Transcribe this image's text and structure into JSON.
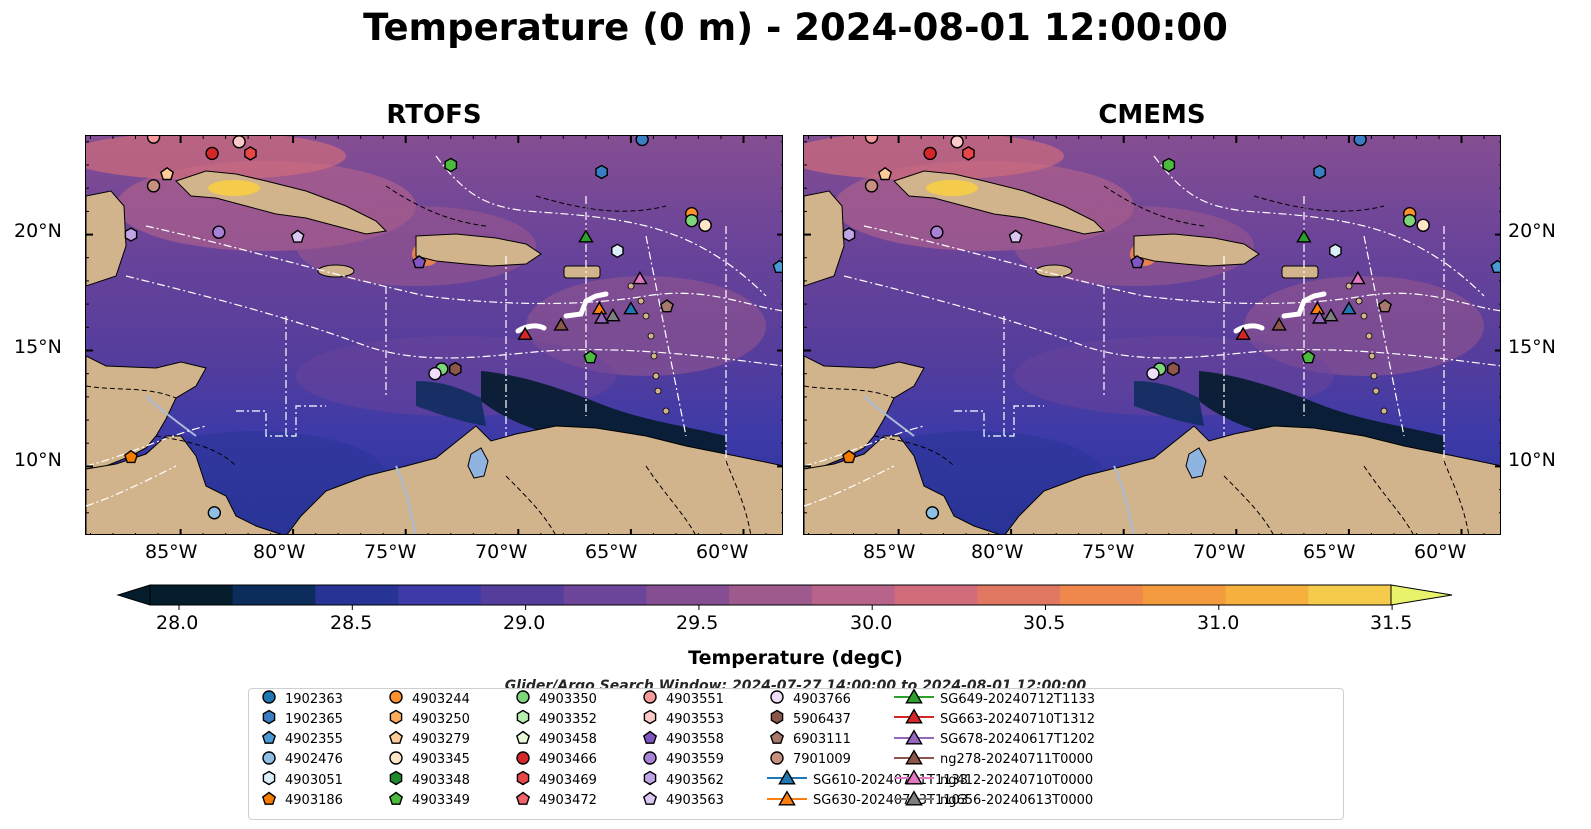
{
  "title": "Temperature (0 m) - 2024-08-01 12:00:00",
  "panels": [
    {
      "title": "RTOFS"
    },
    {
      "title": "CMEMS"
    }
  ],
  "axes": {
    "lat_labels": [
      "20°N",
      "15°N",
      "10°N"
    ],
    "lon_labels": [
      "85°W",
      "80°W",
      "75°W",
      "70°W",
      "65°W",
      "60°W"
    ]
  },
  "colorbar": {
    "label": "Temperature (degC)",
    "ticks": [
      "28.0",
      "28.5",
      "29.0",
      "29.5",
      "30.0",
      "30.5",
      "31.0",
      "31.5"
    ],
    "colors": [
      "#041c2c",
      "#0c2d5b",
      "#283396",
      "#3d3aa8",
      "#553d9c",
      "#6c4499",
      "#854e92",
      "#9e5a8c",
      "#b8648a",
      "#d06c7c",
      "#e07760",
      "#f0874c",
      "#f49a3e",
      "#f6b03e",
      "#f4cb4a",
      "#e8f26a"
    ]
  },
  "search_window": "Glider/Argo Search Window: 2024-07-27 14:00:00 to 2024-08-01 12:00:00",
  "legend": [
    {
      "label": "1902363",
      "marker": "circle",
      "color": "#1f77b4"
    },
    {
      "label": "1902365",
      "marker": "hexagon",
      "color": "#3a7fc4"
    },
    {
      "label": "4902355",
      "marker": "pentagon",
      "color": "#4a9ad6"
    },
    {
      "label": "4902476",
      "marker": "circle",
      "color": "#8ec0e6"
    },
    {
      "label": "4903051",
      "marker": "hexagon",
      "color": "#dceefa"
    },
    {
      "label": "4903186",
      "marker": "pentagon",
      "color": "#f57c00"
    },
    {
      "label": "4903244",
      "marker": "circle",
      "color": "#ff922e"
    },
    {
      "label": "4903250",
      "marker": "hexagon",
      "color": "#ffac5c"
    },
    {
      "label": "4903279",
      "marker": "pentagon",
      "color": "#ffcc99"
    },
    {
      "label": "4903345",
      "marker": "circle",
      "color": "#ffe6c8"
    },
    {
      "label": "4903348",
      "marker": "hexagon",
      "color": "#1f8a2c"
    },
    {
      "label": "4903349",
      "marker": "pentagon",
      "color": "#4cba3c"
    },
    {
      "label": "4903350",
      "marker": "circle",
      "color": "#7dd67a"
    },
    {
      "label": "4903352",
      "marker": "hexagon",
      "color": "#b8efb0"
    },
    {
      "label": "4903458",
      "marker": "pentagon",
      "color": "#e6fad8"
    },
    {
      "label": "4903466",
      "marker": "circle",
      "color": "#d62728"
    },
    {
      "label": "4903469",
      "marker": "hexagon",
      "color": "#e8474a"
    },
    {
      "label": "4903472",
      "marker": "pentagon",
      "color": "#f0636a"
    },
    {
      "label": "4903551",
      "marker": "circle",
      "color": "#f59a9a"
    },
    {
      "label": "4903553",
      "marker": "hexagon",
      "color": "#fcc8c8"
    },
    {
      "label": "4903558",
      "marker": "pentagon",
      "color": "#7e57c2"
    },
    {
      "label": "4903559",
      "marker": "circle",
      "color": "#a882d6"
    },
    {
      "label": "4903562",
      "marker": "hexagon",
      "color": "#c0a4e6"
    },
    {
      "label": "4903563",
      "marker": "pentagon",
      "color": "#dac8f2"
    },
    {
      "label": "4903766",
      "marker": "circle",
      "color": "#f0ddfa"
    },
    {
      "label": "5906437",
      "marker": "hexagon",
      "color": "#8c564b"
    },
    {
      "label": "6903111",
      "marker": "pentagon",
      "color": "#a87a6c"
    },
    {
      "label": "7901009",
      "marker": "circle",
      "color": "#c8907e"
    },
    {
      "label": "SG610-20240711T1133",
      "marker": "triangle",
      "color": "#1f77b4"
    },
    {
      "label": "SG630-20240713T1103",
      "marker": "triangle",
      "color": "#ff7f0e"
    },
    {
      "label": "SG649-20240712T1133",
      "marker": "triangle",
      "color": "#2ca02c"
    },
    {
      "label": "SG663-20240710T1312",
      "marker": "triangle",
      "color": "#d62728"
    },
    {
      "label": "SG678-20240617T1202",
      "marker": "triangle",
      "color": "#9467bd"
    },
    {
      "label": "ng278-20240711T0000",
      "marker": "triangle",
      "color": "#8c564b"
    },
    {
      "label": "ng412-20240710T0000",
      "marker": "triangle",
      "color": "#e377c2"
    },
    {
      "label": "ng656-20240613T0000",
      "marker": "triangle",
      "color": "#7f7f7f"
    }
  ],
  "map_markers": [
    {
      "lon": -86.2,
      "lat": 24.2,
      "marker": "circle",
      "color": "#f59a9a"
    },
    {
      "lon": -82.4,
      "lat": 24.0,
      "marker": "circle",
      "color": "#fcc8c8"
    },
    {
      "lon": -83.6,
      "lat": 23.5,
      "marker": "circle",
      "color": "#d62728"
    },
    {
      "lon": -81.9,
      "lat": 23.5,
      "marker": "hexagon",
      "color": "#e8474a"
    },
    {
      "lon": -85.6,
      "lat": 22.6,
      "marker": "pentagon",
      "color": "#ffcc99"
    },
    {
      "lon": -86.2,
      "lat": 22.1,
      "marker": "circle",
      "color": "#c8907e"
    },
    {
      "lon": -64.5,
      "lat": 24.1,
      "marker": "circle",
      "color": "#3a7fc4"
    },
    {
      "lon": -73.0,
      "lat": 23.0,
      "marker": "hexagon",
      "color": "#4cba3c"
    },
    {
      "lon": -66.3,
      "lat": 22.7,
      "marker": "hexagon",
      "color": "#3a7fc4"
    },
    {
      "lon": -62.3,
      "lat": 20.9,
      "marker": "circle",
      "color": "#ff922e"
    },
    {
      "lon": -62.3,
      "lat": 20.6,
      "marker": "circle",
      "color": "#7dd67a"
    },
    {
      "lon": -61.7,
      "lat": 20.4,
      "marker": "circle",
      "color": "#ffe6c8"
    },
    {
      "lon": -87.2,
      "lat": 20.0,
      "marker": "hexagon",
      "color": "#c0a4e6"
    },
    {
      "lon": -83.3,
      "lat": 20.1,
      "marker": "circle",
      "color": "#a882d6"
    },
    {
      "lon": -79.8,
      "lat": 19.9,
      "marker": "pentagon",
      "color": "#dac8f2"
    },
    {
      "lon": -67.0,
      "lat": 19.9,
      "marker": "triangle",
      "color": "#2ca02c"
    },
    {
      "lon": -65.6,
      "lat": 19.3,
      "marker": "hexagon",
      "color": "#dceefa"
    },
    {
      "lon": -74.4,
      "lat": 18.8,
      "marker": "pentagon",
      "color": "#7e57c2"
    },
    {
      "lon": -58.4,
      "lat": 18.6,
      "marker": "pentagon",
      "color": "#4a9ad6"
    },
    {
      "lon": -64.6,
      "lat": 18.1,
      "marker": "triangle",
      "color": "#e377c2"
    },
    {
      "lon": -63.4,
      "lat": 16.9,
      "marker": "pentagon",
      "color": "#a87a6c"
    },
    {
      "lon": -66.4,
      "lat": 16.8,
      "marker": "triangle",
      "color": "#ff7f0e"
    },
    {
      "lon": -65.0,
      "lat": 16.8,
      "marker": "triangle",
      "color": "#1f77b4"
    },
    {
      "lon": -65.8,
      "lat": 16.5,
      "marker": "triangle",
      "color": "#7f7f7f"
    },
    {
      "lon": -66.3,
      "lat": 16.4,
      "marker": "triangle",
      "color": "#9467bd"
    },
    {
      "lon": -68.1,
      "lat": 16.1,
      "marker": "triangle",
      "color": "#8c564b"
    },
    {
      "lon": -69.7,
      "lat": 15.7,
      "marker": "triangle",
      "color": "#d62728"
    },
    {
      "lon": -66.8,
      "lat": 14.7,
      "marker": "pentagon",
      "color": "#4cba3c"
    },
    {
      "lon": -73.4,
      "lat": 14.2,
      "marker": "circle",
      "color": "#7dd67a"
    },
    {
      "lon": -72.8,
      "lat": 14.2,
      "marker": "hexagon",
      "color": "#8c564b"
    },
    {
      "lon": -73.7,
      "lat": 14.0,
      "marker": "circle",
      "color": "#f0ddfa"
    },
    {
      "lon": -87.2,
      "lat": 10.4,
      "marker": "pentagon",
      "color": "#f57c00"
    },
    {
      "lon": -83.5,
      "lat": 8.0,
      "marker": "circle",
      "color": "#8ec0e6"
    }
  ]
}
